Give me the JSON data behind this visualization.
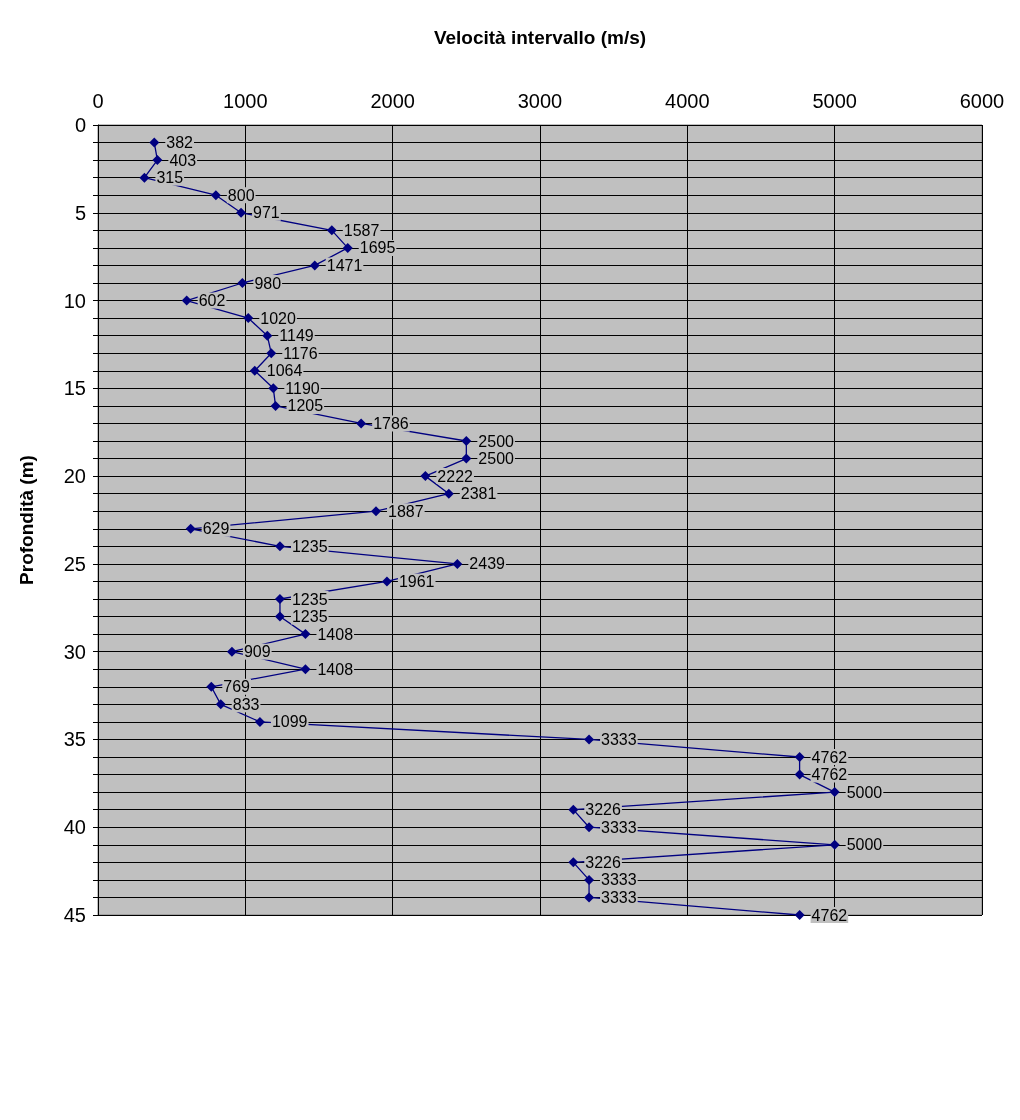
{
  "chart_data": {
    "type": "line",
    "xlabel": "Velocità intervallo (m/s)",
    "ylabel": "Profondità (m)",
    "xlim": [
      0,
      6000
    ],
    "xticks": [
      0,
      1000,
      2000,
      3000,
      4000,
      5000,
      6000
    ],
    "ylim": [
      45,
      0
    ],
    "yticks": [
      0,
      {
        "value": 1,
        "label": null
      },
      {
        "value": 2,
        "label": null
      },
      {
        "value": 3,
        "label": null
      },
      {
        "value": 4,
        "label": null
      },
      5,
      {
        "value": 6,
        "label": null
      },
      {
        "value": 7,
        "label": null
      },
      {
        "value": 8,
        "label": null
      },
      {
        "value": 9,
        "label": null
      },
      10,
      {
        "value": 11,
        "label": null
      },
      {
        "value": 12,
        "label": null
      },
      {
        "value": 13,
        "label": null
      },
      {
        "value": 14,
        "label": null
      },
      15,
      {
        "value": 16,
        "label": null
      },
      {
        "value": 17,
        "label": null
      },
      {
        "value": 18,
        "label": null
      },
      {
        "value": 19,
        "label": null
      },
      20,
      {
        "value": 21,
        "label": null
      },
      {
        "value": 22,
        "label": null
      },
      {
        "value": 23,
        "label": null
      },
      {
        "value": 24,
        "label": null
      },
      25,
      {
        "value": 26,
        "label": null
      },
      {
        "value": 27,
        "label": null
      },
      {
        "value": 28,
        "label": null
      },
      {
        "value": 29,
        "label": null
      },
      30,
      {
        "value": 31,
        "label": null
      },
      {
        "value": 32,
        "label": null
      },
      {
        "value": 33,
        "label": null
      },
      {
        "value": 34,
        "label": null
      },
      35,
      {
        "value": 36,
        "label": null
      },
      {
        "value": 37,
        "label": null
      },
      {
        "value": 38,
        "label": null
      },
      {
        "value": 39,
        "label": null
      },
      40,
      {
        "value": 41,
        "label": null
      },
      {
        "value": 42,
        "label": null
      },
      {
        "value": 43,
        "label": null
      },
      {
        "value": 44,
        "label": null
      },
      45
    ],
    "grid": true,
    "marker": "diamond",
    "line_style": "solid",
    "orientation": "horizontal",
    "series": [
      {
        "color": "#000080",
        "x": [
          1,
          2,
          3,
          4,
          5,
          6,
          7,
          8,
          9,
          10,
          11,
          12,
          13,
          14,
          15,
          16,
          17,
          18,
          19,
          20,
          21,
          22,
          23,
          24,
          25,
          26,
          27,
          28,
          29,
          30,
          31,
          32,
          33,
          34,
          35,
          36,
          37,
          38,
          39,
          40,
          41,
          42,
          43,
          44,
          45
        ],
        "values": [
          382,
          403,
          315,
          800,
          971,
          1587,
          1695,
          1471,
          980,
          602,
          1020,
          1149,
          1176,
          1064,
          1190,
          1205,
          1786,
          2500,
          2500,
          2222,
          2381,
          1887,
          629,
          1235,
          2439,
          1961,
          1235,
          1235,
          1408,
          909,
          1408,
          769,
          833,
          1099,
          3333,
          4762,
          4762,
          5000,
          3226,
          3333,
          5000,
          3226,
          3333,
          3333,
          4762
        ],
        "value_labels": [
          "382",
          "403",
          "315",
          "800",
          "971",
          "1587",
          "1695",
          "1471",
          "980",
          "602",
          "1020",
          "1149",
          "1176",
          "1064",
          "1190",
          "1205",
          "1786",
          "2500",
          "2500",
          "2222",
          "2381",
          "1887",
          "629",
          "1235",
          "2439",
          "1961",
          "1235",
          "1235",
          "1408",
          "909",
          "1408",
          "769",
          "833",
          "1099",
          "3333",
          "4762",
          "4762",
          "5000",
          "3226",
          "3333",
          "5000",
          "3226",
          "3333",
          "3333",
          "4762"
        ]
      }
    ]
  }
}
